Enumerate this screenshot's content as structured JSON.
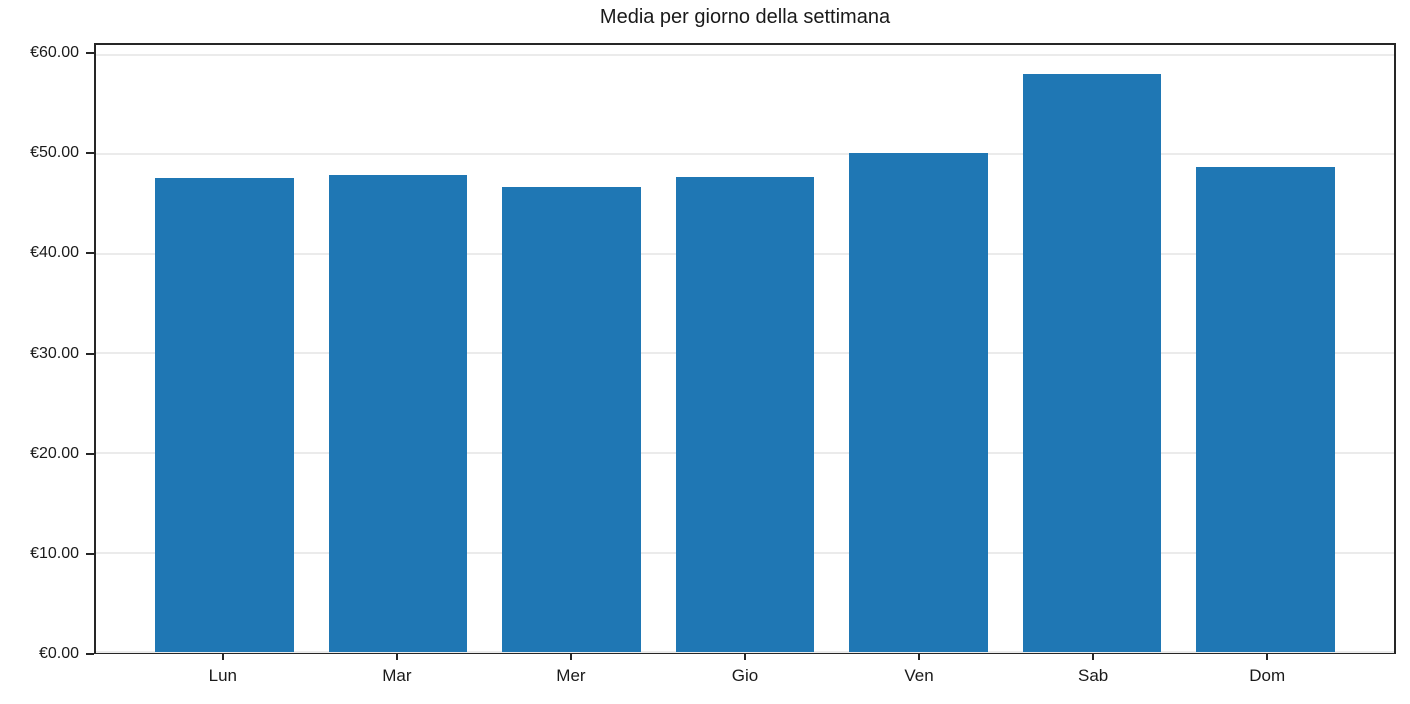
{
  "chart_data": {
    "type": "bar",
    "title": "Media per giorno della settimana",
    "categories": [
      "Lun",
      "Mar",
      "Mer",
      "Gio",
      "Ven",
      "Sab",
      "Dom"
    ],
    "values": [
      47.6,
      47.9,
      46.7,
      47.7,
      50.1,
      58.1,
      48.7
    ],
    "series_name": "Media",
    "xlabel": "",
    "ylabel": "",
    "ylim": [
      0,
      61
    ],
    "ytick_values": [
      0,
      10,
      20,
      30,
      40,
      50,
      60
    ],
    "ytick_labels": [
      "€0.00",
      "€10.00",
      "€20.00",
      "€30.00",
      "€40.00",
      "€50.00",
      "€60.00"
    ],
    "currency_symbol": "€",
    "grid": "horizontal",
    "legend_position": "none",
    "colors": {
      "bar": "#1f77b4",
      "spine": "#262626",
      "grid": "#ebebeb",
      "text": "#1a1a1a",
      "background": "#ffffff"
    }
  }
}
